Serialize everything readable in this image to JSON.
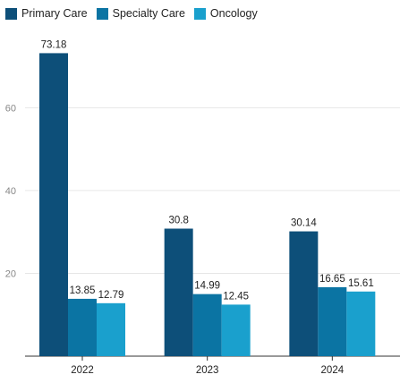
{
  "chart_data": {
    "type": "bar",
    "categories": [
      "2022",
      "2023",
      "2024"
    ],
    "series": [
      {
        "name": "Primary Care",
        "values": [
          73.18,
          30.8,
          30.14
        ],
        "color": "#0d4f79"
      },
      {
        "name": "Specialty Care",
        "values": [
          13.85,
          14.99,
          16.65
        ],
        "color": "#0b74a3"
      },
      {
        "name": "Oncology",
        "values": [
          12.79,
          12.45,
          15.61
        ],
        "color": "#1aa0cd"
      }
    ],
    "y_ticks": [
      20,
      40,
      60
    ],
    "ylim": [
      0,
      75
    ],
    "grid": true,
    "legend_position": "top-left"
  }
}
